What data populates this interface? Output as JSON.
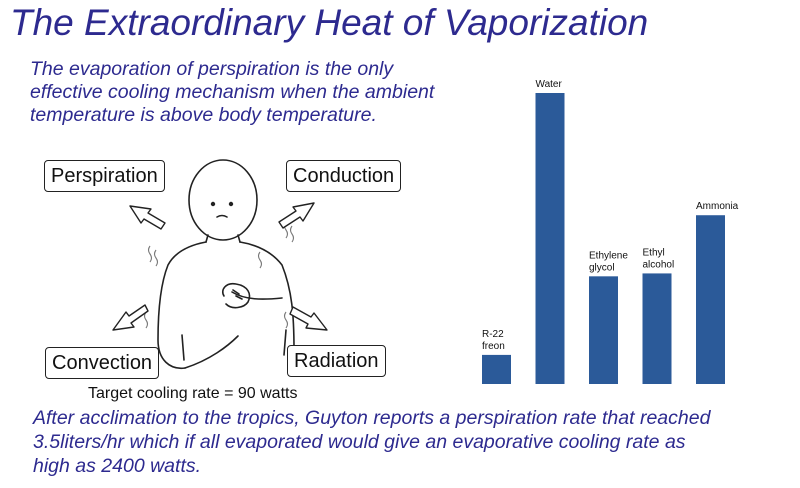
{
  "page": {
    "title": "The Extraordinary Heat of Vaporization",
    "intro_lines": [
      "The evaporation of  perspiration is the only",
      "effective cooling mechanism when the ambient",
      "temperature is above body temperature."
    ],
    "illustration": {
      "labels": {
        "perspiration": "Perspiration",
        "conduction": "Conduction",
        "convection": "Convection",
        "radiation": "Radiation"
      },
      "target": "Target cooling rate  =  90 watts"
    },
    "outro_lines": [
      "After acclimation to the tropics, Guyton reports a perspiration rate that reached",
      "3.5liters/hr which if all evaporated would give an evaporative cooling rate as",
      "high as 2400 watts."
    ]
  },
  "chart_data": {
    "type": "bar",
    "categories": [
      [
        "R-22",
        "freon"
      ],
      [
        "Water"
      ],
      [
        "Ethylene",
        "glycol"
      ],
      [
        "Ethyl",
        "alcohol"
      ],
      [
        "Ammonia"
      ]
    ],
    "values": [
      0.1,
      1.0,
      0.37,
      0.38,
      0.58
    ],
    "ylim": [
      0,
      1
    ],
    "bar_color": "#2b5a99",
    "axes_shown": false,
    "grid": false
  }
}
